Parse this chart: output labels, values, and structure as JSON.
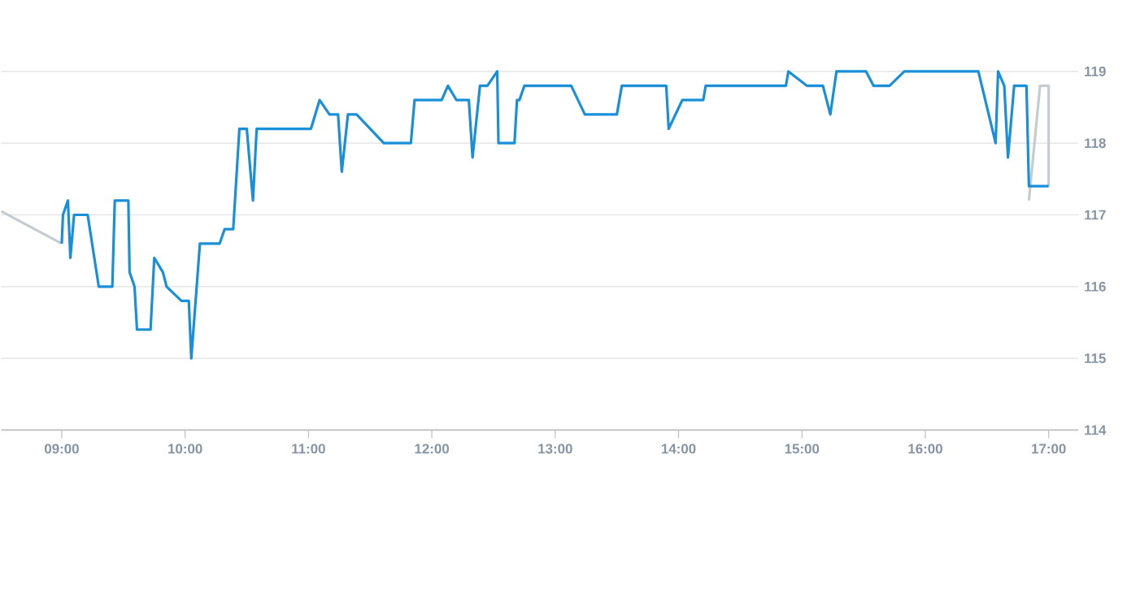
{
  "chart_data": {
    "type": "line",
    "xlim": [
      8.51,
      17.24
    ],
    "ylim": [
      114,
      119
    ],
    "xticks": [
      {
        "value": 9,
        "label": "09:00"
      },
      {
        "value": 10,
        "label": "10:00"
      },
      {
        "value": 11,
        "label": "11:00"
      },
      {
        "value": 12,
        "label": "12:00"
      },
      {
        "value": 13,
        "label": "13:00"
      },
      {
        "value": 14,
        "label": "14:00"
      },
      {
        "value": 15,
        "label": "15:00"
      },
      {
        "value": 16,
        "label": "16:00"
      },
      {
        "value": 17,
        "label": "17:00"
      }
    ],
    "yticks": [
      114,
      115,
      116,
      117,
      118,
      119
    ],
    "grid": "y",
    "series": [
      {
        "color": "#c3ccd1",
        "x": [
          8.51,
          9.0,
          12.0,
          16.84,
          16.93,
          17.0,
          17.0
        ],
        "values": [
          117.05,
          116.6,
          null,
          117.2,
          118.8,
          118.8,
          117.4
        ]
      },
      {
        "color": "#1a8fd9",
        "x": [
          9.0,
          9.01,
          9.05,
          9.07,
          9.1,
          9.21,
          9.3,
          9.41,
          9.43,
          9.54,
          9.55,
          9.59,
          9.61,
          9.72,
          9.75,
          9.82,
          9.85,
          9.97,
          10.03,
          10.05,
          10.12,
          10.28,
          10.32,
          10.39,
          10.44,
          10.5,
          10.55,
          10.58,
          11.02,
          11.09,
          11.17,
          11.24,
          11.27,
          11.32,
          11.39,
          11.61,
          11.83,
          11.86,
          12.08,
          12.13,
          12.2,
          12.3,
          12.33,
          12.39,
          12.45,
          12.53,
          12.54,
          12.67,
          12.69,
          12.71,
          12.75,
          13.13,
          13.24,
          13.5,
          13.54,
          13.9,
          13.92,
          14.03,
          14.2,
          14.22,
          14.87,
          14.89,
          15.04,
          15.17,
          15.23,
          15.28,
          15.52,
          15.58,
          15.71,
          15.83,
          16.43,
          16.57,
          16.59,
          16.64,
          16.67,
          16.72,
          16.82,
          16.84,
          17.0
        ],
        "values": [
          116.6,
          117.0,
          117.2,
          116.4,
          117.0,
          117.0,
          116.0,
          116.0,
          117.2,
          117.2,
          116.2,
          116.0,
          115.4,
          115.4,
          116.4,
          116.2,
          116.0,
          115.8,
          115.8,
          115.0,
          116.6,
          116.6,
          116.8,
          116.8,
          118.2,
          118.2,
          117.2,
          118.2,
          118.2,
          118.6,
          118.4,
          118.4,
          117.6,
          118.4,
          118.4,
          118.0,
          118.0,
          118.6,
          118.6,
          118.8,
          118.6,
          118.6,
          117.8,
          118.8,
          118.8,
          119.0,
          118.0,
          118.0,
          118.6,
          118.6,
          118.8,
          118.8,
          118.4,
          118.4,
          118.8,
          118.8,
          118.2,
          118.6,
          118.6,
          118.8,
          118.8,
          119.0,
          118.8,
          118.8,
          118.4,
          119.0,
          119.0,
          118.8,
          118.8,
          119.0,
          119.0,
          118.0,
          119.0,
          118.8,
          117.8,
          118.8,
          118.8,
          117.4,
          117.4
        ]
      }
    ]
  }
}
